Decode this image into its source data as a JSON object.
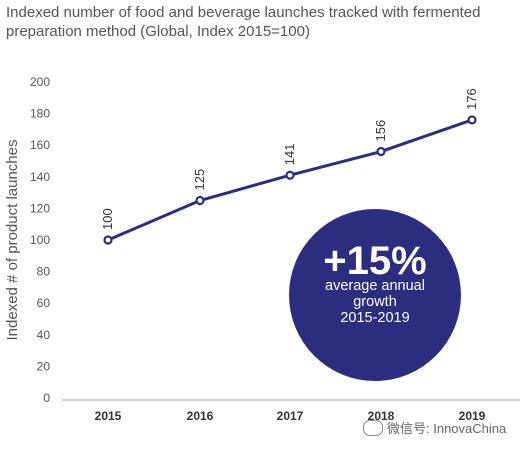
{
  "title": "Indexed number of food and beverage launches tracked with fermented preparation method (Global, Index 2015=100)",
  "watermark": {
    "text": "微信号: InnovaChina",
    "icon": "wechat-icon"
  },
  "callout": {
    "headline": "+15%",
    "line1": "average annual",
    "line2": "growth",
    "line3": "2015-2019",
    "color": "#2b2e7f"
  },
  "chart_data": {
    "type": "line",
    "title": "Indexed number of food and beverage launches tracked with fermented preparation method (Global, Index 2015=100)",
    "xlabel": "",
    "ylabel": "Indexed # of product launches",
    "categories": [
      "2015",
      "2016",
      "2017",
      "2018",
      "2019"
    ],
    "series": [
      {
        "values": [
          100,
          125,
          141,
          156,
          176
        ]
      }
    ],
    "data_labels": [
      "100",
      "125",
      "141",
      "156",
      "176"
    ],
    "ylim": [
      0,
      200
    ],
    "yticks": [
      0,
      20,
      40,
      60,
      80,
      100,
      120,
      140,
      160,
      180,
      200
    ],
    "grid": false,
    "line_color": "#2b2e7f",
    "marker_fill": "#ffffff"
  }
}
